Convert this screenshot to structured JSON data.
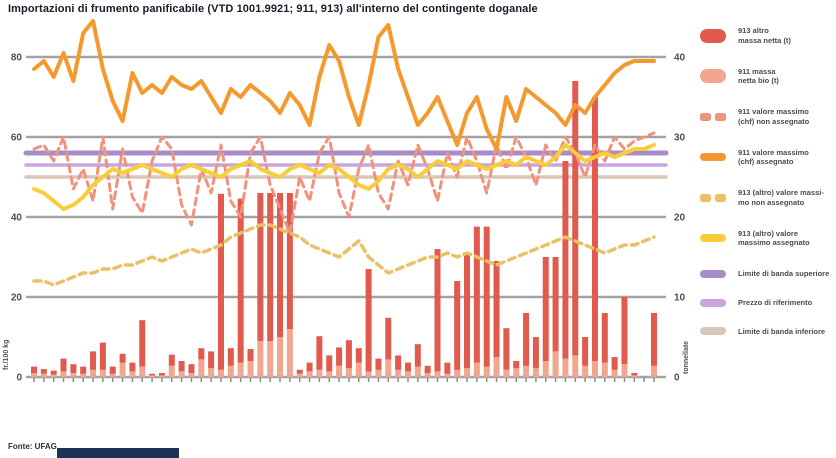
{
  "title": "Importazioni di frumento panificabile (VTD 1001.9921; 911, 913) all'interno del contingente doganale",
  "source": "Fonte: UFAG",
  "axes": {
    "left": {
      "title": "fr./100 kg",
      "ticks": [
        80,
        60,
        40,
        20,
        0
      ],
      "max": 80
    },
    "right": {
      "title": "tonnellate",
      "ticks": [
        40,
        30,
        20,
        10,
        0
      ],
      "max": 40
    }
  },
  "colors": {
    "grid": "#a3a3a3",
    "bar_altro": "#e05a4e",
    "bar_bio": "#f3a68f",
    "line_911_assegnato": "#f5992e",
    "line_911_non_assegnato": "#f0937d",
    "line_913_assegnato": "#f9cd3a",
    "line_913_non_assegnato": "#e9c267",
    "banda_superiore": "#a88cc7",
    "prezzo_riferimento": "#c9a5de",
    "banda_inferiore": "#d9c6b6",
    "axis_text": "#4f4f4f",
    "bottom_bar": "#1c3357"
  },
  "legend": {
    "items": [
      {
        "id": "913-altro-massa-netta",
        "swatch": "bar",
        "color": "#e05a4e",
        "label": "913 altro\nmassa netta (t)"
      },
      {
        "id": "911-massa-netta-bio",
        "swatch": "bar",
        "color": "#f3a68f",
        "label": "911 massa\nnetta bio (t)"
      },
      {
        "id": "911-valore-massimo-non-assegnato",
        "swatch": "dashes",
        "color": "#f0937d",
        "label": "911 valore massimo\n(chf) non assegnato"
      },
      {
        "id": "911-valore-massimo-assegnato",
        "swatch": "line",
        "color": "#f5992e",
        "label": "911 valore massimo\n(chf) assegnato"
      },
      {
        "id": "913-valore-massimo-non-assegnato",
        "swatch": "dashes",
        "color": "#e9c267",
        "label": "913 (altro) valore massi-\nmo non assegnato"
      },
      {
        "id": "913-valore-massimo-assegnato",
        "swatch": "line",
        "color": "#f9cd3a",
        "label": "913 (altro) valore\nmassimo assegnato"
      },
      {
        "id": "limite-banda-superiore",
        "swatch": "line",
        "color": "#a88cc7",
        "label": "Limite di banda superiore",
        "single": true
      },
      {
        "id": "prezzo-riferimento",
        "swatch": "line",
        "color": "#c9a5de",
        "label": "Prezzo di riferimento",
        "single": true
      },
      {
        "id": "limite-banda-inferiore",
        "swatch": "line",
        "color": "#d9c6b6",
        "label": "Limite di banda inferiore",
        "single": true
      }
    ]
  },
  "chart_data": {
    "type": "bar",
    "subtype": "stacked-bars-with-lines-combo",
    "n_points": 64,
    "x_axis_labels_visible": false,
    "grid": true,
    "ylim_left": [
      0,
      80
    ],
    "ylim_right": [
      0,
      40
    ],
    "bars": {
      "stacked": true,
      "axis": "right",
      "series": [
        {
          "name": "911 massa netta bio (t)",
          "color": "#f3a68f",
          "values": [
            0.5,
            0.4,
            0.3,
            0.7,
            0.5,
            0.4,
            0.9,
            0.9,
            0.4,
            1.8,
            0.7,
            1.3,
            0.2,
            0.2,
            1.4,
            0.7,
            0.5,
            2.2,
            1.1,
            0.9,
            1.4,
            1.8,
            2.0,
            4.5,
            4.5,
            5.0,
            6.0,
            0.4,
            0.7,
            0.9,
            0.7,
            1.4,
            1.1,
            1.8,
            0.7,
            0.9,
            2.2,
            0.9,
            0.7,
            1.3,
            0.5,
            0.7,
            0.4,
            0.9,
            1.1,
            1.8,
            1.3,
            2.5,
            0.9,
            1.1,
            1.4,
            1.1,
            2.0,
            3.2,
            2.3,
            2.7,
            1.4,
            2.0,
            1.8,
            0.9,
            1.6,
            0.2,
            0.0,
            1.4
          ]
        },
        {
          "name": "913 altro massa netta (t)",
          "color": "#e05a4e",
          "values": [
            0.8,
            0.6,
            0.5,
            1.6,
            1.1,
            0.9,
            2.3,
            3.4,
            0.9,
            1.1,
            1.1,
            5.8,
            0.2,
            0.3,
            1.4,
            1.3,
            1.1,
            1.4,
            2.1,
            22.0,
            2.2,
            20.5,
            1.5,
            18.5,
            18.5,
            18.0,
            17.0,
            0.5,
            1.1,
            4.2,
            2.0,
            2.3,
            3.5,
            1.8,
            12.8,
            1.4,
            5.2,
            1.8,
            1.1,
            2.8,
            0.9,
            15.3,
            1.4,
            11.1,
            14.4,
            17.0,
            17.5,
            12.0,
            5.2,
            0.9,
            6.6,
            3.9,
            13.0,
            11.8,
            24.7,
            34.3,
            3.6,
            33.0,
            6.2,
            1.6,
            8.4,
            0.3,
            0.0,
            6.6
          ]
        }
      ]
    },
    "lines": [
      {
        "name": "913 (altro) valore massimo non assegnato",
        "axis": "left",
        "color": "#e9c267",
        "dashed": true,
        "width": 3.5,
        "values": [
          24,
          24,
          23,
          24,
          25,
          26,
          26,
          27,
          27,
          28,
          28,
          29,
          30,
          29,
          30,
          31,
          32,
          31,
          32,
          33,
          35,
          36,
          37,
          38,
          38,
          37,
          36,
          35,
          33,
          32,
          31,
          30,
          32,
          34,
          30,
          28,
          26,
          27,
          28,
          29,
          30,
          30,
          31,
          30,
          31,
          30,
          29,
          28,
          29,
          30,
          31,
          32,
          33,
          34,
          35,
          34,
          33,
          32,
          31,
          32,
          33,
          33,
          34,
          35
        ]
      },
      {
        "name": "911 valore massimo (chf) non assegnato",
        "axis": "left",
        "color": "#f0937d",
        "dashed": true,
        "width": 3,
        "values": [
          57,
          58,
          54,
          60,
          47,
          52,
          44,
          60,
          42,
          57,
          45,
          41,
          54,
          60,
          57,
          43,
          38,
          52,
          46,
          58,
          44,
          40,
          56,
          60,
          48,
          42,
          36,
          50,
          44,
          56,
          60,
          46,
          40,
          52,
          58,
          46,
          42,
          54,
          48,
          58,
          52,
          44,
          56,
          50,
          60,
          54,
          46,
          58,
          52,
          60,
          55,
          48,
          58,
          54,
          60,
          56,
          50,
          58,
          54,
          60,
          57,
          59,
          60,
          61
        ]
      },
      {
        "name": "913 (altro) valore massimo assegnato",
        "axis": "left",
        "color": "#f9cd3a",
        "dashed": false,
        "width": 4,
        "values": [
          47,
          46,
          44,
          42,
          43,
          45,
          48,
          50,
          52,
          51,
          52,
          53,
          52,
          51,
          50,
          52,
          53,
          52,
          51,
          50,
          52,
          53,
          54,
          52,
          51,
          50,
          52,
          53,
          52,
          51,
          53,
          52,
          50,
          48,
          47,
          49,
          52,
          53,
          52,
          50,
          52,
          54,
          53,
          52,
          54,
          53,
          52,
          53,
          54,
          53,
          55,
          54,
          53,
          55,
          58,
          56,
          54,
          55,
          56,
          55,
          56,
          57,
          57,
          58
        ]
      },
      {
        "name": "911 valore massimo (chf) assegnato",
        "axis": "left",
        "color": "#f5992e",
        "dashed": false,
        "width": 4,
        "values": [
          77,
          79,
          75,
          81,
          74,
          86,
          89,
          77,
          69,
          64,
          76,
          71,
          73,
          71,
          75,
          73,
          72,
          74,
          70,
          66,
          72,
          70,
          73,
          71,
          69,
          66,
          71,
          68,
          63,
          75,
          83,
          79,
          70,
          63,
          73,
          85,
          88,
          77,
          70,
          63,
          66,
          70,
          64,
          58,
          66,
          70,
          62,
          57,
          70,
          64,
          72,
          70,
          68,
          66,
          63,
          68,
          66,
          70,
          73,
          76,
          78,
          79,
          79,
          79
        ]
      }
    ],
    "reference_lines": [
      {
        "name": "Limite di banda superiore",
        "axis": "left",
        "value": 56,
        "color": "#a88cc7",
        "width": 5
      },
      {
        "name": "Prezzo di riferimento",
        "axis": "left",
        "value": 53,
        "color": "#c9a5de",
        "width": 3.5
      },
      {
        "name": "Limite di banda inferiore",
        "axis": "left",
        "value": 50,
        "color": "#d9c6b6",
        "width": 3.5
      }
    ]
  }
}
